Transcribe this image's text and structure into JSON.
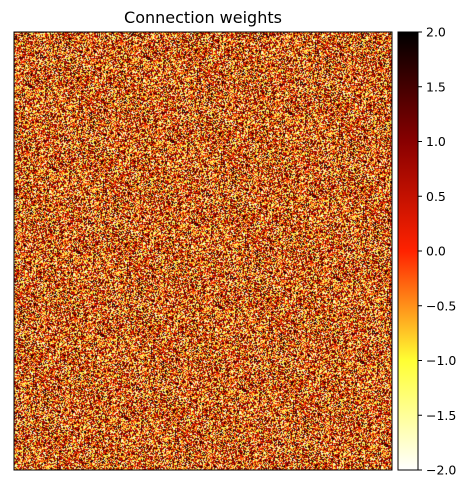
{
  "chart_data": {
    "type": "heatmap",
    "title": "Connection weights",
    "xlabel": "",
    "ylabel": "",
    "x_ticks": [],
    "y_ticks": [],
    "grid": false,
    "colormap": "hot_r",
    "colormap_stops": [
      "#ffffff",
      "#ffff33",
      "#ff2200",
      "#880000",
      "#000000"
    ],
    "value_range": [
      -2.0,
      2.0
    ],
    "value_distribution": "random, roughly uniform over the range",
    "colorbar": {
      "placement": "right",
      "ticks": [
        2.0,
        1.5,
        1.0,
        0.5,
        0.0,
        -0.5,
        -1.0,
        -1.5,
        -2.0
      ],
      "tick_labels": [
        "2.0",
        "1.5",
        "1.0",
        "0.5",
        "0.0",
        "−0.5",
        "−1.0",
        "−1.5",
        "−2.0"
      ]
    }
  }
}
